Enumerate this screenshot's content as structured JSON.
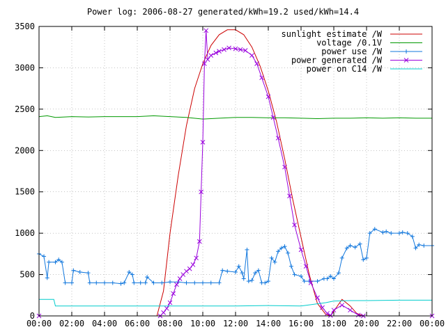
{
  "chart_data": {
    "type": "line",
    "title": "Power log: 2006-08-27 generated/kWh=19.2 used/kWh=14.4",
    "xlabel": "",
    "ylabel": "",
    "xlim": [
      0,
      24
    ],
    "ylim": [
      0,
      3500
    ],
    "x_ticks": [
      "00:00",
      "02:00",
      "04:00",
      "06:00",
      "08:00",
      "10:00",
      "12:00",
      "14:00",
      "16:00",
      "18:00",
      "20:00",
      "22:00",
      "00:00"
    ],
    "y_ticks": [
      "0",
      "500",
      "1000",
      "1500",
      "2000",
      "2500",
      "3000",
      "3500"
    ],
    "grid": true,
    "legend_position": "top-right",
    "series": [
      {
        "name": "sunlight estimate /W",
        "color": "#cc0000",
        "marker": "none",
        "points": [
          [
            0,
            0
          ],
          [
            7.2,
            0
          ],
          [
            7.6,
            300
          ],
          [
            8,
            1000
          ],
          [
            8.5,
            1700
          ],
          [
            9,
            2300
          ],
          [
            9.5,
            2750
          ],
          [
            10,
            3050
          ],
          [
            10.5,
            3270
          ],
          [
            11,
            3400
          ],
          [
            11.5,
            3460
          ],
          [
            12,
            3460
          ],
          [
            12.5,
            3400
          ],
          [
            13,
            3250
          ],
          [
            13.5,
            3020
          ],
          [
            14,
            2720
          ],
          [
            14.5,
            2350
          ],
          [
            15,
            1900
          ],
          [
            15.5,
            1400
          ],
          [
            16,
            950
          ],
          [
            16.5,
            500
          ],
          [
            17,
            150
          ],
          [
            17.5,
            20
          ],
          [
            17.8,
            0
          ],
          [
            18.5,
            200
          ],
          [
            19,
            120
          ],
          [
            19.4,
            30
          ],
          [
            19.8,
            0
          ],
          [
            24,
            0
          ]
        ]
      },
      {
        "name": "voltage /0.1V",
        "color": "#009900",
        "marker": "none",
        "points": [
          [
            0,
            2410
          ],
          [
            0.5,
            2420
          ],
          [
            1,
            2400
          ],
          [
            2,
            2410
          ],
          [
            3,
            2405
          ],
          [
            4,
            2410
          ],
          [
            5,
            2410
          ],
          [
            6,
            2410
          ],
          [
            7,
            2420
          ],
          [
            8,
            2410
          ],
          [
            9,
            2400
          ],
          [
            10,
            2380
          ],
          [
            11,
            2390
          ],
          [
            12,
            2400
          ],
          [
            13,
            2400
          ],
          [
            14,
            2395
          ],
          [
            15,
            2395
          ],
          [
            16,
            2390
          ],
          [
            17,
            2385
          ],
          [
            18,
            2390
          ],
          [
            19,
            2390
          ],
          [
            20,
            2395
          ],
          [
            21,
            2390
          ],
          [
            22,
            2395
          ],
          [
            23,
            2390
          ],
          [
            24,
            2390
          ]
        ]
      },
      {
        "name": "power use /W",
        "color": "#1177dd",
        "marker": "+",
        "points": [
          [
            0,
            750
          ],
          [
            0.3,
            720
          ],
          [
            0.5,
            460
          ],
          [
            0.6,
            650
          ],
          [
            1,
            650
          ],
          [
            1.2,
            680
          ],
          [
            1.4,
            650
          ],
          [
            1.6,
            400
          ],
          [
            2,
            400
          ],
          [
            2.1,
            550
          ],
          [
            2.5,
            530
          ],
          [
            3,
            520
          ],
          [
            3.1,
            400
          ],
          [
            3.5,
            400
          ],
          [
            4,
            400
          ],
          [
            4.5,
            400
          ],
          [
            5,
            390
          ],
          [
            5.2,
            400
          ],
          [
            5.5,
            530
          ],
          [
            5.7,
            500
          ],
          [
            5.8,
            400
          ],
          [
            6.2,
            400
          ],
          [
            6.5,
            400
          ],
          [
            6.6,
            470
          ],
          [
            7,
            400
          ],
          [
            7.5,
            400
          ],
          [
            8,
            410
          ],
          [
            8.5,
            410
          ],
          [
            9,
            400
          ],
          [
            9.5,
            400
          ],
          [
            10,
            400
          ],
          [
            10.5,
            400
          ],
          [
            11,
            400
          ],
          [
            11.2,
            550
          ],
          [
            11.5,
            540
          ],
          [
            12,
            530
          ],
          [
            12.2,
            600
          ],
          [
            12.4,
            520
          ],
          [
            12.5,
            450
          ],
          [
            12.7,
            800
          ],
          [
            12.8,
            420
          ],
          [
            13,
            430
          ],
          [
            13.2,
            520
          ],
          [
            13.4,
            550
          ],
          [
            13.6,
            400
          ],
          [
            13.8,
            400
          ],
          [
            14,
            420
          ],
          [
            14.2,
            700
          ],
          [
            14.4,
            650
          ],
          [
            14.6,
            780
          ],
          [
            14.8,
            820
          ],
          [
            15,
            840
          ],
          [
            15.2,
            760
          ],
          [
            15.4,
            600
          ],
          [
            15.6,
            500
          ],
          [
            16,
            480
          ],
          [
            16.2,
            420
          ],
          [
            16.5,
            420
          ],
          [
            17,
            420
          ],
          [
            17.4,
            450
          ],
          [
            17.6,
            450
          ],
          [
            17.8,
            480
          ],
          [
            18,
            450
          ],
          [
            18.3,
            520
          ],
          [
            18.5,
            700
          ],
          [
            18.8,
            820
          ],
          [
            19,
            850
          ],
          [
            19.3,
            830
          ],
          [
            19.6,
            870
          ],
          [
            19.8,
            680
          ],
          [
            20,
            700
          ],
          [
            20.2,
            1000
          ],
          [
            20.5,
            1050
          ],
          [
            21,
            1010
          ],
          [
            21.2,
            1020
          ],
          [
            21.5,
            1000
          ],
          [
            22,
            1000
          ],
          [
            22.2,
            1010
          ],
          [
            22.5,
            1000
          ],
          [
            22.8,
            960
          ],
          [
            23,
            820
          ],
          [
            23.2,
            860
          ],
          [
            23.5,
            850
          ],
          [
            24,
            850
          ]
        ]
      },
      {
        "name": "power generated /W",
        "color": "#9900dd",
        "marker": "x",
        "points": [
          [
            0,
            0
          ],
          [
            7.4,
            0
          ],
          [
            7.6,
            40
          ],
          [
            7.8,
            90
          ],
          [
            8,
            160
          ],
          [
            8.2,
            270
          ],
          [
            8.4,
            380
          ],
          [
            8.6,
            450
          ],
          [
            8.8,
            500
          ],
          [
            9,
            540
          ],
          [
            9.2,
            570
          ],
          [
            9.4,
            620
          ],
          [
            9.6,
            700
          ],
          [
            9.8,
            900
          ],
          [
            9.9,
            1500
          ],
          [
            10,
            2100
          ],
          [
            10.1,
            3050
          ],
          [
            10.2,
            3450
          ],
          [
            10.3,
            3100
          ],
          [
            10.5,
            3150
          ],
          [
            10.8,
            3180
          ],
          [
            11,
            3200
          ],
          [
            11.3,
            3220
          ],
          [
            11.6,
            3240
          ],
          [
            12,
            3230
          ],
          [
            12.3,
            3220
          ],
          [
            12.6,
            3210
          ],
          [
            13,
            3150
          ],
          [
            13.3,
            3050
          ],
          [
            13.6,
            2880
          ],
          [
            14,
            2650
          ],
          [
            14.3,
            2400
          ],
          [
            14.6,
            2150
          ],
          [
            15,
            1800
          ],
          [
            15.3,
            1450
          ],
          [
            15.6,
            1100
          ],
          [
            16,
            800
          ],
          [
            16.3,
            600
          ],
          [
            16.6,
            400
          ],
          [
            17,
            220
          ],
          [
            17.3,
            100
          ],
          [
            17.6,
            30
          ],
          [
            17.8,
            5
          ],
          [
            18,
            70
          ],
          [
            18.5,
            130
          ],
          [
            19,
            70
          ],
          [
            19.5,
            10
          ],
          [
            19.8,
            0
          ],
          [
            24,
            0
          ]
        ]
      },
      {
        "name": "power on C14 /W",
        "color": "#00cccc",
        "marker": "none",
        "points": [
          [
            0,
            200
          ],
          [
            0.9,
            200
          ],
          [
            1,
            120
          ],
          [
            2,
            120
          ],
          [
            4,
            120
          ],
          [
            6,
            120
          ],
          [
            8,
            120
          ],
          [
            10,
            120
          ],
          [
            12,
            120
          ],
          [
            14,
            125
          ],
          [
            16,
            120
          ],
          [
            17.5,
            160
          ],
          [
            18,
            180
          ],
          [
            19,
            185
          ],
          [
            20,
            185
          ],
          [
            22,
            190
          ],
          [
            24,
            190
          ]
        ]
      }
    ]
  }
}
